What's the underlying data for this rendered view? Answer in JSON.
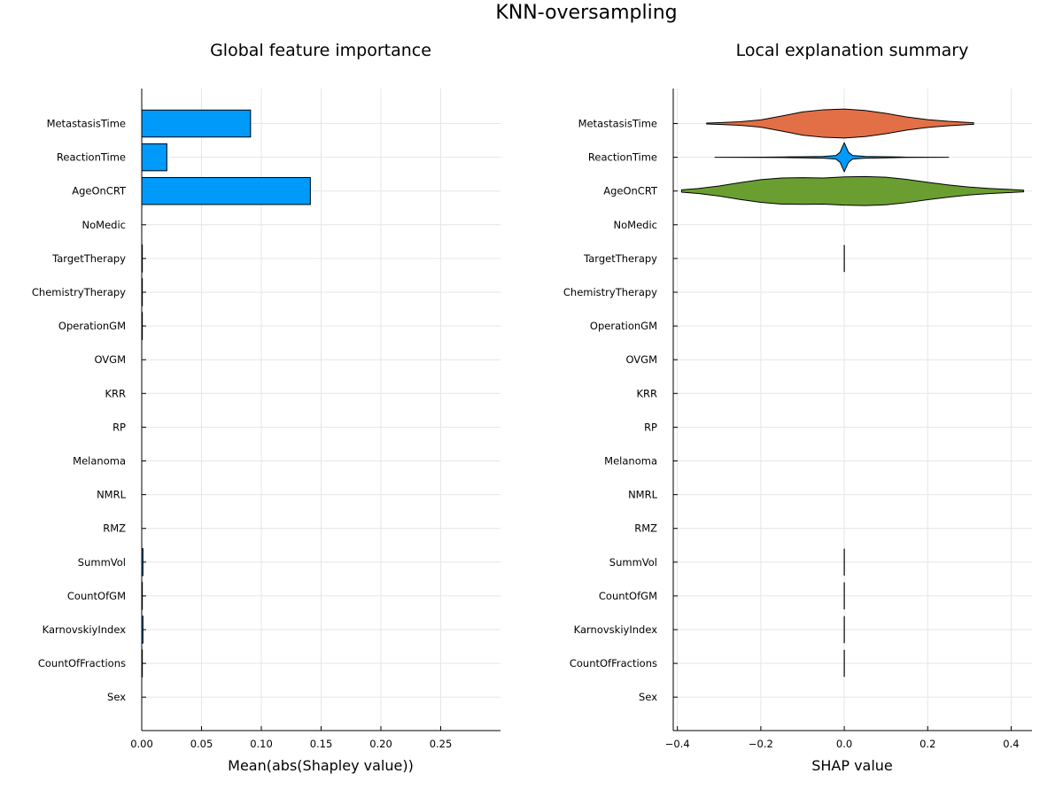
{
  "figure": {
    "title": "KNN-oversampling"
  },
  "chart_data": [
    {
      "type": "bar",
      "orientation": "horizontal",
      "title": "Global feature importance",
      "xlabel": "Mean(abs(Shapley value))",
      "ylabel": "",
      "categories": [
        "MetastasisTime",
        "ReactionTime",
        "AgeOnCRT",
        "NoMedic",
        "TargetTherapy",
        "ChemistryTherapy",
        "OperationGM",
        "OVGM",
        "KRR",
        "RP",
        "Melanoma",
        "NMRL",
        "RMZ",
        "SummVol",
        "CountOfGM",
        "KarnovskiyIndex",
        "CountOfFractions",
        "Sex"
      ],
      "values": [
        0.091,
        0.021,
        0.141,
        0.0,
        0.0005,
        0.0005,
        0.0005,
        0.0,
        0.0,
        0.0,
        0.0,
        0.0,
        0.0,
        0.001,
        0.0005,
        0.001,
        0.0005,
        0.0
      ],
      "xlim": [
        0,
        0.3
      ],
      "xticks": [
        0.0,
        0.05,
        0.1,
        0.15,
        0.2,
        0.25
      ],
      "xtick_labels": [
        "0.00",
        "0.05",
        "0.10",
        "0.15",
        "0.20",
        "0.25"
      ],
      "color": "#009AFA",
      "grid": true,
      "legend": "none"
    },
    {
      "type": "violin",
      "orientation": "horizontal",
      "title": "Local explanation summary",
      "xlabel": "SHAP value",
      "ylabel": "",
      "categories": [
        "MetastasisTime",
        "ReactionTime",
        "AgeOnCRT",
        "NoMedic",
        "TargetTherapy",
        "ChemistryTherapy",
        "OperationGM",
        "OVGM",
        "KRR",
        "RP",
        "Melanoma",
        "NMRL",
        "RMZ",
        "SummVol",
        "CountOfGM",
        "KarnovskiyIndex",
        "CountOfFractions",
        "Sex"
      ],
      "xlim": [
        -0.41,
        0.45
      ],
      "xticks": [
        -0.4,
        -0.2,
        0.0,
        0.2,
        0.4
      ],
      "xtick_labels": [
        "−0.4",
        "−0.2",
        "0.0",
        "0.2",
        "0.4"
      ],
      "grid": true,
      "legend": "none",
      "series": [
        {
          "feature": "MetastasisTime",
          "color": "#E26F46",
          "range": [
            -0.33,
            0.31
          ],
          "profile": [
            [
              -0.33,
              0.03
            ],
            [
              -0.3,
              0.06
            ],
            [
              -0.25,
              0.12
            ],
            [
              -0.2,
              0.25
            ],
            [
              -0.15,
              0.52
            ],
            [
              -0.1,
              0.8
            ],
            [
              -0.05,
              0.95
            ],
            [
              0.0,
              1.0
            ],
            [
              0.05,
              0.9
            ],
            [
              0.1,
              0.7
            ],
            [
              0.15,
              0.45
            ],
            [
              0.2,
              0.27
            ],
            [
              0.25,
              0.15
            ],
            [
              0.3,
              0.07
            ],
            [
              0.31,
              0.05
            ]
          ]
        },
        {
          "feature": "ReactionTime",
          "color": "#009AFA",
          "range": [
            -0.31,
            0.25
          ],
          "profile": [
            [
              -0.31,
              0.0
            ],
            [
              -0.2,
              0.01
            ],
            [
              -0.15,
              0.02
            ],
            [
              -0.1,
              0.04
            ],
            [
              -0.05,
              0.06
            ],
            [
              -0.02,
              0.12
            ],
            [
              -0.01,
              0.35
            ],
            [
              0.0,
              1.0
            ],
            [
              0.01,
              0.35
            ],
            [
              0.02,
              0.12
            ],
            [
              0.05,
              0.06
            ],
            [
              0.1,
              0.04
            ],
            [
              0.15,
              0.01
            ],
            [
              0.25,
              0.0
            ]
          ]
        },
        {
          "feature": "AgeOnCRT",
          "color": "#6B9E31",
          "range": [
            -0.39,
            0.43
          ],
          "profile": [
            [
              -0.39,
              0.08
            ],
            [
              -0.35,
              0.17
            ],
            [
              -0.3,
              0.35
            ],
            [
              -0.25,
              0.58
            ],
            [
              -0.2,
              0.78
            ],
            [
              -0.15,
              0.9
            ],
            [
              -0.1,
              0.92
            ],
            [
              -0.05,
              0.9
            ],
            [
              0.0,
              0.97
            ],
            [
              0.05,
              1.0
            ],
            [
              0.1,
              0.95
            ],
            [
              0.15,
              0.8
            ],
            [
              0.2,
              0.6
            ],
            [
              0.25,
              0.42
            ],
            [
              0.3,
              0.27
            ],
            [
              0.35,
              0.17
            ],
            [
              0.4,
              0.1
            ],
            [
              0.43,
              0.06
            ]
          ]
        },
        {
          "feature": "TargetTherapy",
          "color": "#000000",
          "spike_at": 0.0,
          "height": 0.8
        },
        {
          "feature": "SummVol",
          "color": "#000000",
          "spike_at": 0.0,
          "height": 0.8
        },
        {
          "feature": "CountOfGM",
          "color": "#000000",
          "spike_at": 0.0,
          "height": 0.8
        },
        {
          "feature": "KarnovskiyIndex",
          "color": "#000000",
          "spike_at": 0.0,
          "height": 0.8
        },
        {
          "feature": "CountOfFractions",
          "color": "#000000",
          "spike_at": 0.0,
          "height": 0.8
        }
      ]
    }
  ]
}
